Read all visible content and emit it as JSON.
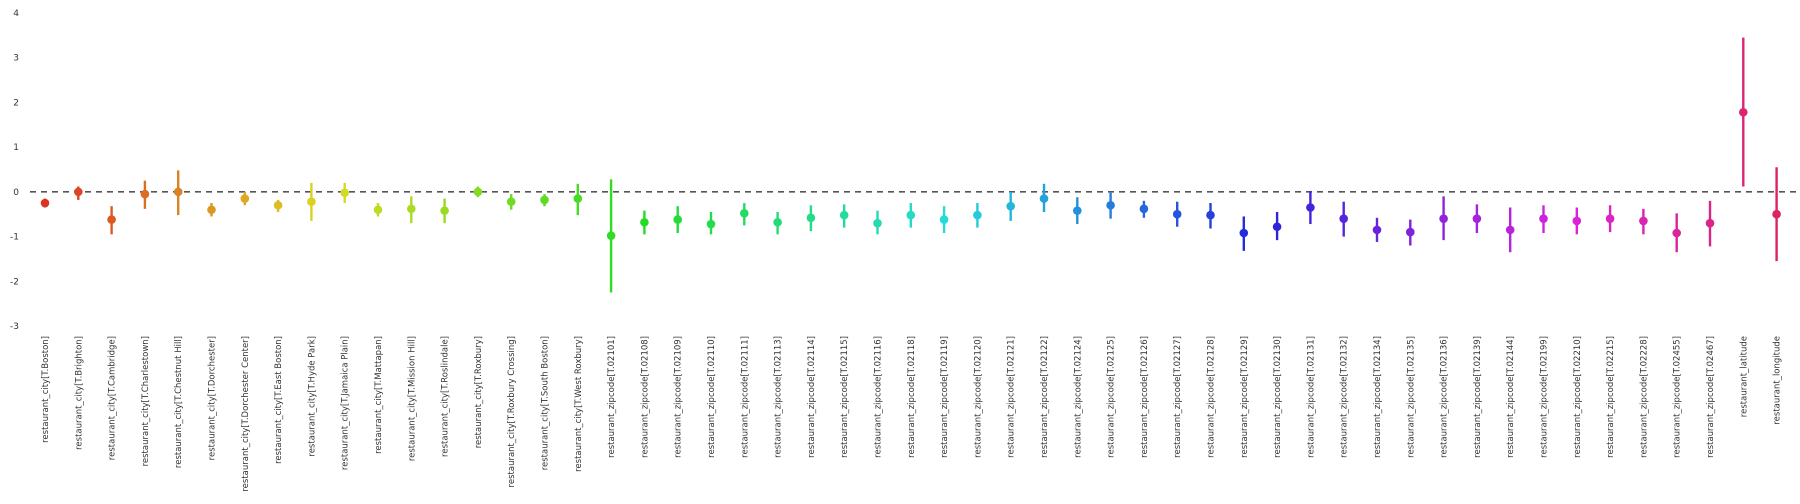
{
  "chart_data": {
    "type": "scatter",
    "subtype": "pointplot-with-error-bars",
    "title": "",
    "xlabel": "",
    "ylabel": "",
    "ylim": [
      -3,
      4
    ],
    "yticks": [
      "-3",
      "-2",
      "-1",
      "0",
      "1",
      "2",
      "3",
      "4"
    ],
    "reference_line": {
      "y": 0,
      "style": "dashed",
      "color": "#555555"
    },
    "grid": false,
    "legend": "none",
    "palette": "husl",
    "categories": [
      "restaurant_city[T.Boston]",
      "restaurant_city[T.Brighton]",
      "restaurant_city[T.Cambridge]",
      "restaurant_city[T.Charlestown]",
      "restaurant_city[T.Chestnut Hill]",
      "restaurant_city[T.Dorchester]",
      "restaurant_city[T.Dorchester Center]",
      "restaurant_city[T.East Boston]",
      "restaurant_city[T.Hyde Park]",
      "restaurant_city[T.Jamaica Plain]",
      "restaurant_city[T.Mattapan]",
      "restaurant_city[T.Mission Hill]",
      "restaurant_city[T.Roslindale]",
      "restaurant_city[T.Roxbury]",
      "restaurant_city[T.Roxbury Crossing]",
      "restaurant_city[T.South Boston]",
      "restaurant_city[T.West Roxbury]",
      "restaurant_zipcode[T.02101]",
      "restaurant_zipcode[T.02108]",
      "restaurant_zipcode[T.02109]",
      "restaurant_zipcode[T.02110]",
      "restaurant_zipcode[T.02111]",
      "restaurant_zipcode[T.02113]",
      "restaurant_zipcode[T.02114]",
      "restaurant_zipcode[T.02115]",
      "restaurant_zipcode[T.02116]",
      "restaurant_zipcode[T.02118]",
      "restaurant_zipcode[T.02119]",
      "restaurant_zipcode[T.02120]",
      "restaurant_zipcode[T.02121]",
      "restaurant_zipcode[T.02122]",
      "restaurant_zipcode[T.02124]",
      "restaurant_zipcode[T.02125]",
      "restaurant_zipcode[T.02126]",
      "restaurant_zipcode[T.02127]",
      "restaurant_zipcode[T.02128]",
      "restaurant_zipcode[T.02129]",
      "restaurant_zipcode[T.02130]",
      "restaurant_zipcode[T.02131]",
      "restaurant_zipcode[T.02132]",
      "restaurant_zipcode[T.02134]",
      "restaurant_zipcode[T.02135]",
      "restaurant_zipcode[T.02136]",
      "restaurant_zipcode[T.02139]",
      "restaurant_zipcode[T.02144]",
      "restaurant_zipcode[T.02199]",
      "restaurant_zipcode[T.02210]",
      "restaurant_zipcode[T.02215]",
      "restaurant_zipcode[T.02228]",
      "restaurant_zipcode[T.02455]",
      "restaurant_zipcode[T.02467]",
      "restaurant_latitude",
      "restaurant_longitude"
    ],
    "values": [
      -0.25,
      0.0,
      -0.62,
      -0.05,
      0.0,
      -0.4,
      -0.15,
      -0.3,
      -0.22,
      -0.02,
      -0.4,
      -0.38,
      -0.42,
      0.0,
      -0.22,
      -0.18,
      -0.15,
      -0.98,
      -0.68,
      -0.62,
      -0.72,
      -0.48,
      -0.68,
      -0.58,
      -0.52,
      -0.7,
      -0.52,
      -0.62,
      -0.52,
      -0.32,
      -0.15,
      -0.42,
      -0.3,
      -0.38,
      -0.5,
      -0.52,
      -0.92,
      -0.78,
      -0.35,
      -0.6,
      -0.85,
      -0.9,
      -0.6,
      -0.6,
      -0.85,
      -0.6,
      -0.65,
      -0.6,
      -0.65,
      -0.92,
      -0.7,
      1.78,
      -0.5
    ],
    "err_low": [
      -0.35,
      -0.18,
      -0.95,
      -0.38,
      -0.52,
      -0.55,
      -0.3,
      -0.45,
      -0.65,
      -0.25,
      -0.55,
      -0.7,
      -0.7,
      -0.12,
      -0.4,
      -0.32,
      -0.52,
      -2.25,
      -0.95,
      -0.92,
      -0.95,
      -0.75,
      -0.95,
      -0.88,
      -0.8,
      -0.95,
      -0.8,
      -0.92,
      -0.8,
      -0.65,
      -0.45,
      -0.72,
      -0.6,
      -0.58,
      -0.78,
      -0.82,
      -1.32,
      -1.08,
      -0.72,
      -1.0,
      -1.12,
      -1.2,
      -1.08,
      -0.92,
      -1.35,
      -0.92,
      -0.95,
      -0.9,
      -0.95,
      -1.35,
      -1.22,
      0.12,
      -1.55
    ],
    "err_high": [
      -0.15,
      0.12,
      -0.32,
      0.25,
      0.48,
      -0.25,
      0.0,
      -0.18,
      0.2,
      0.2,
      -0.25,
      -0.1,
      -0.15,
      0.12,
      -0.05,
      -0.05,
      0.18,
      0.28,
      -0.42,
      -0.32,
      -0.45,
      -0.25,
      -0.45,
      -0.3,
      -0.28,
      -0.42,
      -0.25,
      -0.32,
      -0.25,
      0.0,
      0.18,
      -0.12,
      -0.02,
      -0.2,
      -0.22,
      -0.25,
      -0.55,
      -0.45,
      0.02,
      -0.22,
      -0.58,
      -0.62,
      -0.1,
      -0.28,
      -0.35,
      -0.3,
      -0.35,
      -0.3,
      -0.38,
      -0.48,
      -0.2,
      3.45,
      0.55
    ]
  }
}
